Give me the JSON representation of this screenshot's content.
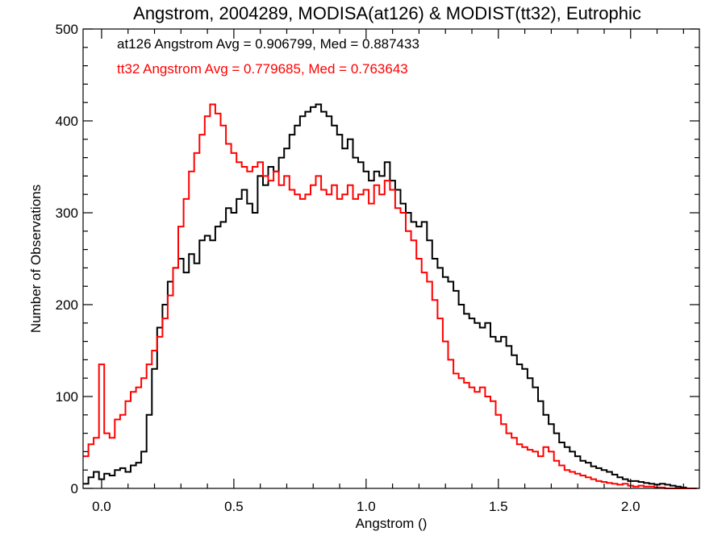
{
  "chart_data": {
    "type": "line",
    "title": "Angstrom, 2004289, MODISA(at126) & MODIST(tt32), Eutrophic",
    "xlabel": "Angstrom ()",
    "ylabel": "Number of Observations",
    "xlim": [
      -0.07,
      2.26
    ],
    "ylim": [
      0,
      500
    ],
    "x_ticks": [
      0.0,
      0.5,
      1.0,
      1.5,
      2.0
    ],
    "x_tick_labels": [
      "0.0",
      "0.5",
      "1.0",
      "1.5",
      "2.0"
    ],
    "y_ticks": [
      0,
      100,
      200,
      300,
      400,
      500
    ],
    "y_tick_labels": [
      "0",
      "100",
      "200",
      "300",
      "400",
      "500"
    ],
    "grid": false,
    "line_style": "step",
    "annotations": [
      {
        "text": "at126 Angstrom Avg = 0.906799, Med = 0.887433",
        "color": "#000000"
      },
      {
        "text": "tt32 Angstrom Avg = 0.779685, Med = 0.763643",
        "color": "#ff0000"
      }
    ],
    "series": [
      {
        "color": "#000000",
        "x": [
          -0.06,
          -0.04,
          -0.02,
          0.0,
          0.02,
          0.04,
          0.06,
          0.08,
          0.1,
          0.12,
          0.14,
          0.16,
          0.18,
          0.2,
          0.22,
          0.24,
          0.26,
          0.28,
          0.3,
          0.32,
          0.34,
          0.36,
          0.38,
          0.4,
          0.42,
          0.44,
          0.46,
          0.48,
          0.5,
          0.52,
          0.54,
          0.56,
          0.58,
          0.6,
          0.62,
          0.64,
          0.66,
          0.68,
          0.7,
          0.72,
          0.74,
          0.76,
          0.78,
          0.8,
          0.82,
          0.84,
          0.86,
          0.88,
          0.9,
          0.92,
          0.94,
          0.96,
          0.98,
          1.0,
          1.02,
          1.04,
          1.06,
          1.08,
          1.1,
          1.12,
          1.14,
          1.16,
          1.18,
          1.2,
          1.22,
          1.24,
          1.26,
          1.28,
          1.3,
          1.32,
          1.34,
          1.36,
          1.38,
          1.4,
          1.42,
          1.44,
          1.46,
          1.48,
          1.5,
          1.52,
          1.54,
          1.56,
          1.58,
          1.6,
          1.62,
          1.64,
          1.66,
          1.68,
          1.7,
          1.72,
          1.74,
          1.76,
          1.78,
          1.8,
          1.82,
          1.84,
          1.86,
          1.88,
          1.9,
          1.92,
          1.94,
          1.96,
          1.98,
          2.0,
          2.02,
          2.04,
          2.06,
          2.08,
          2.1,
          2.12,
          2.14,
          2.16,
          2.18,
          2.2,
          2.22,
          2.24
        ],
        "y": [
          5,
          12,
          18,
          10,
          16,
          14,
          20,
          22,
          18,
          25,
          28,
          40,
          80,
          130,
          175,
          200,
          225,
          240,
          250,
          235,
          255,
          245,
          270,
          275,
          270,
          285,
          290,
          305,
          300,
          315,
          325,
          310,
          300,
          340,
          330,
          350,
          345,
          360,
          370,
          385,
          395,
          405,
          410,
          415,
          418,
          410,
          405,
          395,
          385,
          370,
          380,
          360,
          355,
          345,
          335,
          345,
          340,
          355,
          335,
          325,
          310,
          300,
          290,
          285,
          290,
          270,
          250,
          240,
          230,
          225,
          215,
          200,
          190,
          185,
          180,
          175,
          180,
          165,
          160,
          165,
          155,
          145,
          135,
          130,
          120,
          110,
          95,
          80,
          70,
          60,
          50,
          45,
          40,
          35,
          30,
          28,
          24,
          22,
          20,
          18,
          15,
          12,
          10,
          8,
          8,
          7,
          6,
          5,
          4,
          5,
          4,
          3,
          2,
          1,
          0,
          0
        ]
      },
      {
        "color": "#ff0000",
        "x": [
          -0.06,
          -0.04,
          -0.02,
          0.0,
          0.02,
          0.04,
          0.06,
          0.08,
          0.1,
          0.12,
          0.14,
          0.16,
          0.18,
          0.2,
          0.22,
          0.24,
          0.26,
          0.28,
          0.3,
          0.32,
          0.34,
          0.36,
          0.38,
          0.4,
          0.42,
          0.44,
          0.46,
          0.48,
          0.5,
          0.52,
          0.54,
          0.56,
          0.58,
          0.6,
          0.62,
          0.64,
          0.66,
          0.68,
          0.7,
          0.72,
          0.74,
          0.76,
          0.78,
          0.8,
          0.82,
          0.84,
          0.86,
          0.88,
          0.9,
          0.92,
          0.94,
          0.96,
          0.98,
          1.0,
          1.02,
          1.04,
          1.06,
          1.08,
          1.1,
          1.12,
          1.14,
          1.16,
          1.18,
          1.2,
          1.22,
          1.24,
          1.26,
          1.28,
          1.3,
          1.32,
          1.34,
          1.36,
          1.38,
          1.4,
          1.42,
          1.44,
          1.46,
          1.48,
          1.5,
          1.52,
          1.54,
          1.56,
          1.58,
          1.6,
          1.62,
          1.64,
          1.66,
          1.68,
          1.7,
          1.72,
          1.74,
          1.76,
          1.78,
          1.8,
          1.82,
          1.84,
          1.86,
          1.88,
          1.9,
          1.92,
          1.94,
          1.96,
          1.98,
          2.0,
          2.02,
          2.04,
          2.06,
          2.08,
          2.1,
          2.12,
          2.14,
          2.16,
          2.18,
          2.2,
          2.22,
          2.24
        ],
        "y": [
          35,
          48,
          55,
          135,
          60,
          55,
          75,
          80,
          95,
          105,
          110,
          120,
          135,
          150,
          165,
          185,
          210,
          240,
          285,
          315,
          345,
          365,
          385,
          405,
          418,
          408,
          395,
          375,
          365,
          355,
          350,
          345,
          350,
          355,
          340,
          335,
          345,
          330,
          340,
          325,
          320,
          315,
          320,
          330,
          340,
          325,
          320,
          330,
          315,
          320,
          330,
          315,
          320,
          325,
          310,
          330,
          320,
          335,
          325,
          305,
          300,
          280,
          270,
          250,
          235,
          225,
          205,
          185,
          160,
          140,
          125,
          120,
          115,
          110,
          105,
          110,
          100,
          95,
          80,
          70,
          60,
          55,
          48,
          45,
          42,
          40,
          35,
          45,
          40,
          30,
          25,
          20,
          18,
          16,
          14,
          12,
          10,
          8,
          7,
          6,
          5,
          4,
          5,
          3,
          2,
          3,
          2,
          2,
          1,
          1,
          0,
          0,
          0,
          0,
          0,
          0
        ]
      }
    ]
  }
}
